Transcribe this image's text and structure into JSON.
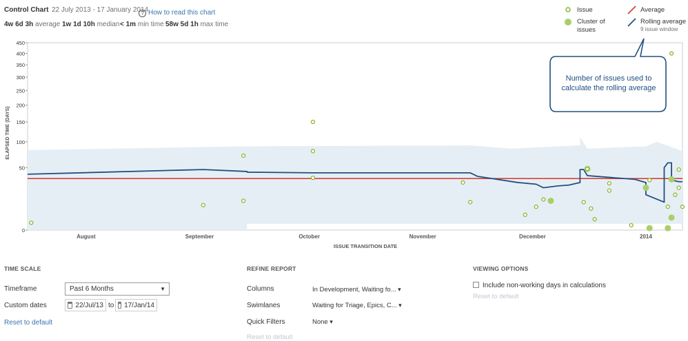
{
  "header": {
    "title": "Control Chart",
    "date_range": "22 July 2013 - 17 January 2014",
    "help_link": "How to read this chart",
    "stats": [
      {
        "value": "4w 6d 3h",
        "label": "average"
      },
      {
        "value": "1w 1d 10h",
        "label": "median"
      },
      {
        "value": "< 1m",
        "label": "min time"
      },
      {
        "value": "58w 5d 1h",
        "label": "max time"
      }
    ]
  },
  "legend": {
    "issue": "Issue",
    "cluster": "Cluster of issues",
    "average": "Average",
    "rolling": "Rolling average",
    "rolling_sub": "9 issue window"
  },
  "callout": "Number of issues used to calculate the rolling average",
  "colors": {
    "issue": "#8db72f",
    "cluster": "#a9cf6b",
    "average": "#d04437",
    "rolling": "#205081",
    "band": "#e6eef5"
  },
  "chart_data": {
    "type": "scatter",
    "xlabel": "ISSUE TRANSITION DATE",
    "ylabel": "ELAPSED TIME (DAYS)",
    "y_scale": "sqrt",
    "ylim": [
      0,
      450
    ],
    "x_range": [
      "2013-07-22",
      "2014-01-17"
    ],
    "x_ticks": [
      {
        "date": "2013-08-07",
        "label": "August"
      },
      {
        "date": "2013-09-07",
        "label": "September"
      },
      {
        "date": "2013-10-07",
        "label": "October"
      },
      {
        "date": "2013-11-07",
        "label": "November"
      },
      {
        "date": "2013-12-07",
        "label": "December"
      },
      {
        "date": "2014-01-07",
        "label": "2014"
      }
    ],
    "y_ticks": [
      0,
      50,
      100,
      150,
      200,
      250,
      300,
      350,
      400,
      450
    ],
    "average": 34,
    "issues": [
      {
        "x": "2013-07-23",
        "y": 0.7
      },
      {
        "x": "2013-09-08",
        "y": 8
      },
      {
        "x": "2013-09-19",
        "y": 71
      },
      {
        "x": "2013-09-19",
        "y": 11
      },
      {
        "x": "2013-10-08",
        "y": 150
      },
      {
        "x": "2013-10-08",
        "y": 80
      },
      {
        "x": "2013-10-08",
        "y": 35
      },
      {
        "x": "2013-11-18",
        "y": 29
      },
      {
        "x": "2013-11-20",
        "y": 10
      },
      {
        "x": "2013-12-05",
        "y": 3
      },
      {
        "x": "2013-12-08",
        "y": 7
      },
      {
        "x": "2013-12-10",
        "y": 12
      },
      {
        "x": "2013-12-21",
        "y": 10
      },
      {
        "x": "2013-12-23",
        "y": 6
      },
      {
        "x": "2013-12-24",
        "y": 1.5
      },
      {
        "x": "2013-12-22",
        "y": 48
      },
      {
        "x": "2013-12-28",
        "y": 28
      },
      {
        "x": "2013-12-28",
        "y": 20
      },
      {
        "x": "2014-01-03",
        "y": 0.3
      },
      {
        "x": "2014-01-08",
        "y": 32
      },
      {
        "x": "2014-01-13",
        "y": 7
      },
      {
        "x": "2014-01-14",
        "y": 400
      },
      {
        "x": "2014-01-15",
        "y": 16
      },
      {
        "x": "2014-01-16",
        "y": 47
      },
      {
        "x": "2014-01-16",
        "y": 23
      },
      {
        "x": "2014-01-17",
        "y": 7
      }
    ],
    "clusters": [
      {
        "x": "2013-12-12",
        "y": 11
      },
      {
        "x": "2013-12-22",
        "y": 48
      },
      {
        "x": "2014-01-07",
        "y": 23
      },
      {
        "x": "2014-01-08",
        "y": 0.05
      },
      {
        "x": "2014-01-13",
        "y": 0.05
      },
      {
        "x": "2014-01-14",
        "y": 2
      },
      {
        "x": "2014-01-14",
        "y": 33
      }
    ],
    "rolling_average": [
      {
        "x": "2013-07-22",
        "y": 40
      },
      {
        "x": "2013-09-08",
        "y": 47
      },
      {
        "x": "2013-09-20",
        "y": 44
      },
      {
        "x": "2013-09-20",
        "y": 43
      },
      {
        "x": "2013-10-08",
        "y": 42
      },
      {
        "x": "2013-11-20",
        "y": 42
      },
      {
        "x": "2013-11-22",
        "y": 37
      },
      {
        "x": "2013-12-03",
        "y": 29
      },
      {
        "x": "2013-12-08",
        "y": 27
      },
      {
        "x": "2013-12-10",
        "y": 23
      },
      {
        "x": "2013-12-14",
        "y": 25
      },
      {
        "x": "2013-12-17",
        "y": 26
      },
      {
        "x": "2013-12-19",
        "y": 28
      },
      {
        "x": "2013-12-20",
        "y": 29
      },
      {
        "x": "2013-12-20",
        "y": 47
      },
      {
        "x": "2013-12-21",
        "y": 47
      },
      {
        "x": "2013-12-22",
        "y": 38
      },
      {
        "x": "2013-12-27",
        "y": 36
      },
      {
        "x": "2014-01-04",
        "y": 33
      },
      {
        "x": "2014-01-07",
        "y": 29
      },
      {
        "x": "2014-01-07",
        "y": 16
      },
      {
        "x": "2014-01-12",
        "y": 10
      },
      {
        "x": "2014-01-12",
        "y": 50
      },
      {
        "x": "2014-01-13",
        "y": 58
      },
      {
        "x": "2014-01-14",
        "y": 58
      },
      {
        "x": "2014-01-14",
        "y": 32
      },
      {
        "x": "2014-01-16",
        "y": 30
      },
      {
        "x": "2014-01-17",
        "y": 30
      }
    ],
    "band": [
      {
        "x": "2013-07-22",
        "lo": 0,
        "hi": 82
      },
      {
        "x": "2013-09-20",
        "lo": 0,
        "hi": 90
      },
      {
        "x": "2013-09-20",
        "lo": 0.5,
        "hi": 90
      },
      {
        "x": "2013-11-20",
        "lo": 0.5,
        "hi": 92
      },
      {
        "x": "2013-12-01",
        "lo": 0.5,
        "hi": 85
      },
      {
        "x": "2013-12-20",
        "lo": 0.5,
        "hi": 92
      },
      {
        "x": "2013-12-20",
        "lo": 0.5,
        "hi": 110
      },
      {
        "x": "2013-12-22",
        "lo": 0.5,
        "hi": 85
      },
      {
        "x": "2014-01-07",
        "lo": 0.5,
        "hi": 90
      },
      {
        "x": "2014-01-10",
        "lo": 0.5,
        "hi": 100
      },
      {
        "x": "2014-01-17",
        "lo": 0.5,
        "hi": 80
      }
    ]
  },
  "settings": {
    "time_scale": {
      "heading": "TIME SCALE",
      "timeframe_label": "Timeframe",
      "timeframe_value": "Past 6 Months",
      "custom_label": "Custom dates",
      "from": "22/Jul/13",
      "to_label": "to",
      "to": "17/Jan/14",
      "reset": "Reset to default"
    },
    "refine": {
      "heading": "REFINE REPORT",
      "columns_label": "Columns",
      "columns_value": "In Development, Waiting fo...",
      "swimlanes_label": "Swimlanes",
      "swimlanes_value": "Waiting for Triage, Epics, C...",
      "quick_label": "Quick Filters",
      "quick_value": "None",
      "reset": "Reset to default"
    },
    "viewing": {
      "heading": "VIEWING OPTIONS",
      "nonworking": "Include non-working days in calculations",
      "reset": "Reset to default"
    }
  }
}
